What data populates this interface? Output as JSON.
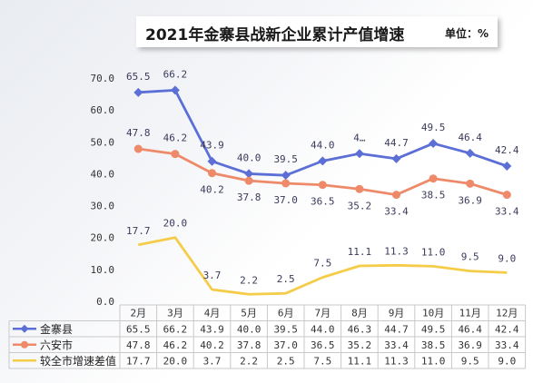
{
  "title": "2021年金寨县战新企业累计产值增速",
  "unit": "单位：%",
  "chart_data": {
    "type": "line",
    "categories": [
      "2月",
      "3月",
      "4月",
      "5月",
      "6月",
      "7月",
      "8月",
      "9月",
      "10月",
      "11月",
      "12月"
    ],
    "yticks": [
      "0.0",
      "10.0",
      "20.0",
      "30.0",
      "40.0",
      "50.0",
      "60.0",
      "70.0"
    ],
    "ylim": [
      0,
      70
    ],
    "series": [
      {
        "name": "金寨县",
        "color": "#5b6fd6",
        "marker": "diamond",
        "values": [
          65.5,
          66.2,
          43.9,
          40.0,
          39.5,
          44.0,
          46.3,
          44.7,
          49.5,
          46.4,
          42.4
        ],
        "labels": [
          "65.5",
          "66.2",
          "43.9",
          "40.0",
          "39.5",
          "44.0",
          "4…",
          "44.7",
          "49.5",
          "46.4",
          "42.4"
        ],
        "table": [
          "65.5",
          "66.2",
          "43.9",
          "40.0",
          "39.5",
          "44.0",
          "46.3",
          "44.7",
          "49.5",
          "46.4",
          "42.4"
        ]
      },
      {
        "name": "六安市",
        "color": "#ee8a6a",
        "marker": "circle",
        "values": [
          47.8,
          46.2,
          40.2,
          37.8,
          37.0,
          36.5,
          35.2,
          33.4,
          38.5,
          36.9,
          33.4
        ],
        "labels": [
          "47.8",
          "46.2",
          "40.2",
          "37.8",
          "37.0",
          "36.5",
          "35.2",
          "33.4",
          "38.5",
          "36.9",
          "33.4"
        ],
        "table": [
          "47.8",
          "46.2",
          "40.2",
          "37.8",
          "37.0",
          "36.5",
          "35.2",
          "33.4",
          "38.5",
          "36.9",
          "33.4"
        ]
      },
      {
        "name": "较全市增速差值",
        "color": "#f5cc48",
        "marker": "none",
        "values": [
          17.7,
          20.0,
          3.7,
          2.2,
          2.5,
          7.5,
          11.1,
          11.3,
          11.0,
          9.5,
          9.0
        ],
        "labels": [
          "17.7",
          "20.0",
          "3.7",
          "2.2",
          "2.5",
          "7.5",
          "11.1",
          "11.3",
          "11.0",
          "9.5",
          "9.0"
        ],
        "table": [
          "17.7",
          "20.0",
          "3.7",
          "2.2",
          "2.5",
          "7.5",
          "11.1",
          "11.3",
          "11.0",
          "9.5",
          "9.0"
        ]
      }
    ]
  }
}
